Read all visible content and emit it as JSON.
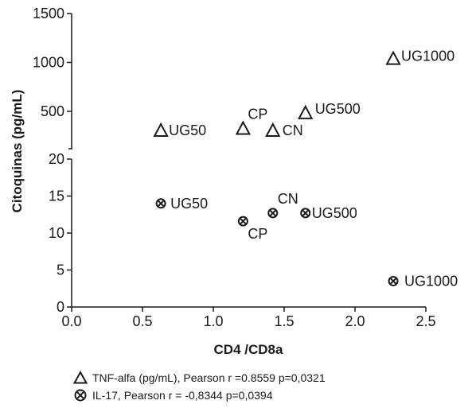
{
  "chart_data": {
    "type": "scatter",
    "xlabel": "CD4 /CD8a",
    "ylabel": "Citoquinas (pg/mL)",
    "xlim": [
      0,
      2.5
    ],
    "x_ticks": [
      "0.0",
      "0.5",
      "1.0",
      "1.5",
      "2.0",
      "2.5"
    ],
    "upper_axis": {
      "ylim": [
        200,
        1500
      ],
      "y_ticks": [
        "500",
        "1000",
        "1500"
      ],
      "y_tick_values": [
        500,
        1000,
        1500
      ]
    },
    "lower_axis": {
      "ylim": [
        0,
        20
      ],
      "y_ticks": [
        "0",
        "5",
        "10",
        "15",
        "20"
      ],
      "y_tick_values": [
        0,
        5,
        10,
        15,
        20
      ]
    },
    "grid": false,
    "legend_position": "bottom",
    "series": [
      {
        "name": "TNF-alfa (pg/mL), Pearson r =0.8559 p=0,0321",
        "marker": "triangle",
        "axis": "upper",
        "points": [
          {
            "label": "UG50",
            "x": 0.63,
            "y": 305
          },
          {
            "label": "CP",
            "x": 1.21,
            "y": 325
          },
          {
            "label": "CN",
            "x": 1.42,
            "y": 305
          },
          {
            "label": "UG500",
            "x": 1.65,
            "y": 485
          },
          {
            "label": "UG1000",
            "x": 2.27,
            "y": 1040
          }
        ]
      },
      {
        "name": "IL-17, Pearson r = -0,8344 p=0,0394",
        "marker": "circle-x",
        "axis": "lower",
        "points": [
          {
            "label": "UG50",
            "x": 0.63,
            "y": 14.0
          },
          {
            "label": "CP",
            "x": 1.21,
            "y": 11.6
          },
          {
            "label": "CN",
            "x": 1.42,
            "y": 12.7
          },
          {
            "label": "UG500",
            "x": 1.65,
            "y": 12.7
          },
          {
            "label": "UG1000",
            "x": 2.27,
            "y": 3.5
          }
        ]
      }
    ]
  }
}
